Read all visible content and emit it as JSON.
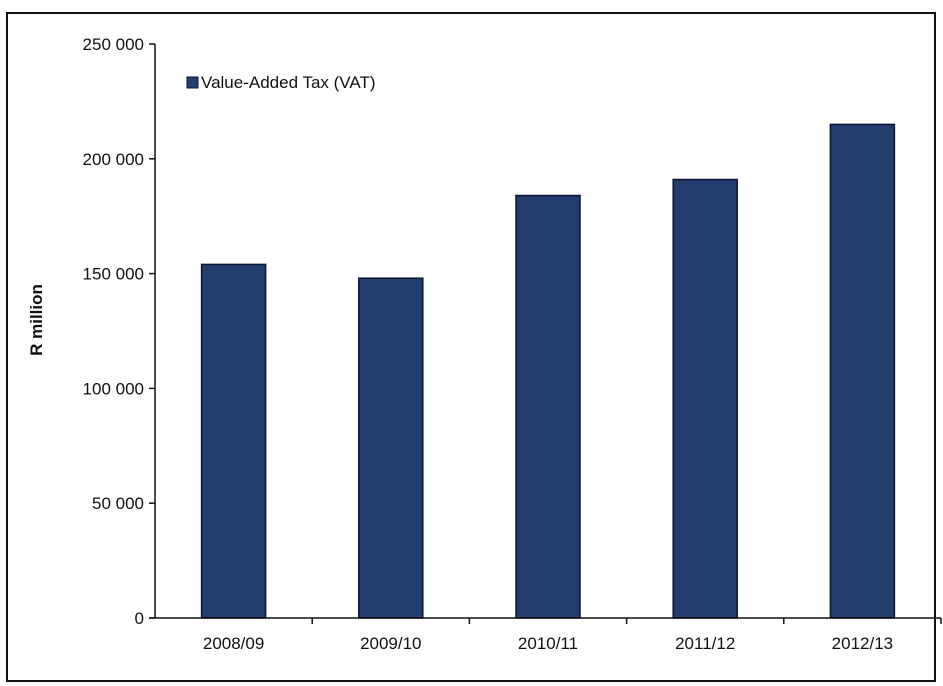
{
  "chart_data": {
    "type": "bar",
    "categories": [
      "2008/09",
      "2009/10",
      "2010/11",
      "2011/12",
      "2012/13"
    ],
    "series": [
      {
        "name": "Value-Added Tax (VAT)",
        "values": [
          154000,
          148000,
          184000,
          191000,
          215000
        ],
        "color": "#223d6e"
      }
    ],
    "ylabel": "R million",
    "xlabel": "",
    "ylim": [
      0,
      250000
    ],
    "yticks": [
      0,
      50000,
      100000,
      150000,
      200000,
      250000
    ],
    "ytick_labels": [
      "0",
      "50 000",
      "100 000",
      "150 000",
      "200 000",
      "250 000"
    ],
    "grid": false,
    "legend_position": "top-left",
    "colors": {
      "bar": "#223d6e",
      "bar_edge": "#0b1430",
      "axis": "#111111"
    }
  }
}
